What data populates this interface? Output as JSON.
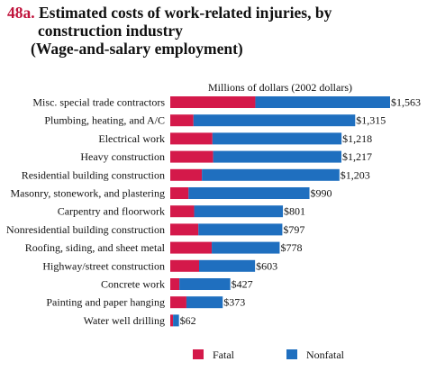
{
  "figure": {
    "number": "48a.",
    "title_line1": "Estimated costs of work-related injuries, by",
    "title_line2": "construction industry",
    "title_line3": "(Wage-and-salary employment)"
  },
  "colors": {
    "fatal": "#d4194a",
    "nonfatal": "#1f6fbf",
    "text": "#111111"
  },
  "chart_data": {
    "type": "bar",
    "orientation": "horizontal",
    "stacked": true,
    "title": "Estimated costs of work-related injuries, by construction industry (Wage-and-salary employment)",
    "axis_title": "Millions of dollars (2002 dollars)",
    "xlim": [
      0,
      1600
    ],
    "grid": false,
    "legend_position": "bottom",
    "categories": [
      "Misc. special trade contractors",
      "Plumbing, heating, and A/C",
      "Electrical work",
      "Heavy construction",
      "Residential building construction",
      "Masonry, stonework, and plastering",
      "Carpentry and floorwork",
      "Nonresidential building construction",
      "Roofing, siding, and sheet metal",
      "Highway/street construction",
      "Concrete work",
      "Painting and paper hanging",
      "Water well drilling"
    ],
    "totals": [
      1563,
      1315,
      1218,
      1217,
      1203,
      990,
      801,
      797,
      778,
      603,
      427,
      373,
      62
    ],
    "total_labels": [
      "$1,563",
      "$1,315",
      "$1,218",
      "$1,217",
      "$1,203",
      "$990",
      "$801",
      "$797",
      "$778",
      "$603",
      "$427",
      "$373",
      "$62"
    ],
    "series": [
      {
        "name": "Fatal",
        "values": [
          605,
          165,
          300,
          305,
          225,
          130,
          170,
          200,
          295,
          205,
          65,
          115,
          20
        ]
      },
      {
        "name": "Nonfatal",
        "values": [
          958,
          1150,
          918,
          912,
          978,
          860,
          631,
          597,
          483,
          398,
          362,
          258,
          42
        ]
      }
    ]
  }
}
